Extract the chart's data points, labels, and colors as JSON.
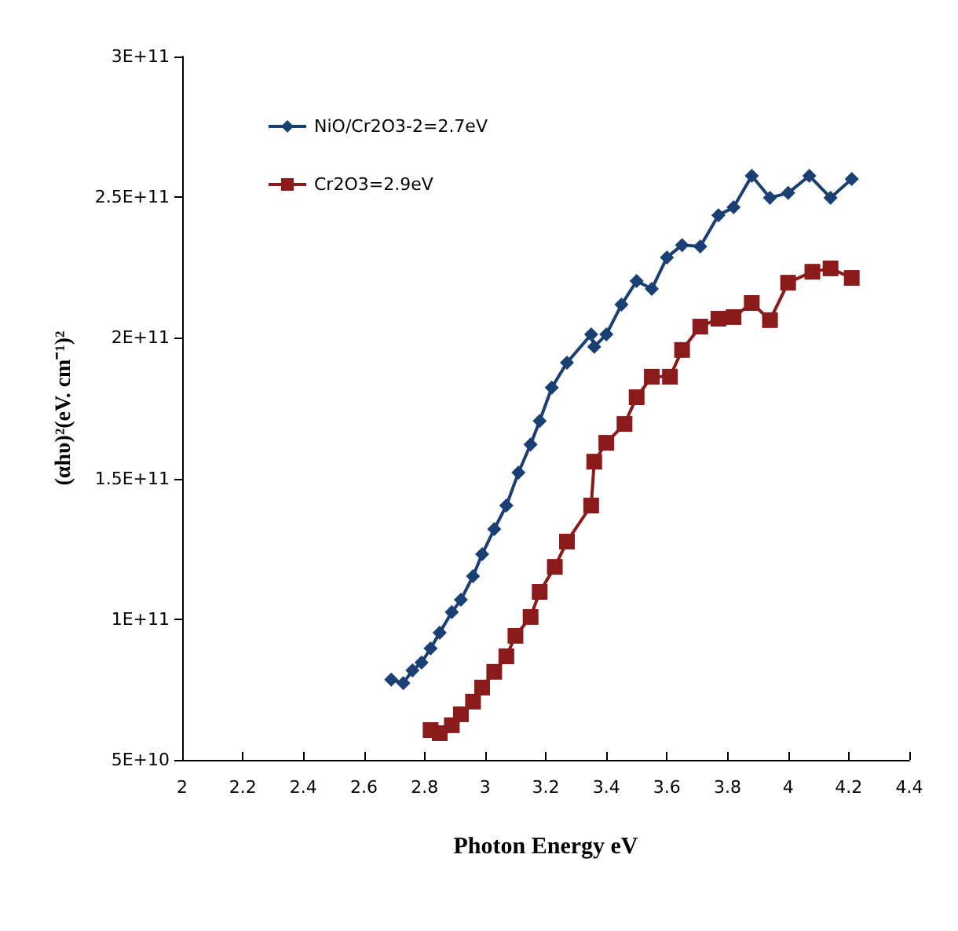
{
  "chart_data": {
    "type": "line",
    "xlabel": "Photon Energy eV",
    "ylabel": "(αhυ)²(eV. cm⁻¹)²",
    "xlim": [
      2,
      4.4
    ],
    "xticks": [
      2,
      2.2,
      2.4,
      2.6,
      2.8,
      3,
      3.2,
      3.4,
      3.6,
      3.8,
      4,
      4.2,
      4.4
    ],
    "ylim": [
      50000000000.0,
      300000000000.0
    ],
    "yticks": [
      {
        "value": 50000000000.0,
        "label": "5E+10"
      },
      {
        "value": 100000000000.0,
        "label": "1E+11"
      },
      {
        "value": 150000000000.0,
        "label": "1.5E+11"
      },
      {
        "value": 200000000000.0,
        "label": "2E+11"
      },
      {
        "value": 250000000000.0,
        "label": "2.5E+11"
      },
      {
        "value": 300000000000.0,
        "label": "3E+11"
      }
    ],
    "grid": false,
    "legend": "top left",
    "line_style": "solid",
    "series": [
      {
        "name": "NiO/Cr2O3-2=2.7eV",
        "color": "#1a3f72",
        "marker": "diamond",
        "x": [
          2.69,
          2.73,
          2.76,
          2.79,
          2.82,
          2.85,
          2.89,
          2.92,
          2.96,
          2.99,
          3.03,
          3.07,
          3.11,
          3.15,
          3.18,
          3.22,
          3.27,
          3.35,
          3.36,
          3.4,
          3.45,
          3.5,
          3.55,
          3.6,
          3.65,
          3.71,
          3.77,
          3.82,
          3.88,
          3.94,
          4.0,
          4.07,
          4.14,
          4.21
        ],
        "values": [
          78500000000.0,
          77300000000.0,
          81800000000.0,
          84600000000.0,
          89600000000.0,
          95200000000.0,
          102500000000.0,
          106900000000.0,
          115300000000.0,
          123100000000.0,
          132000000000.0,
          140400000000.0,
          152100000000.0,
          162100000000.0,
          170500000000.0,
          182300000000.0,
          191200000000.0,
          201200000000.0,
          196800000000.0,
          201200000000.0,
          211800000000.0,
          220200000000.0,
          217400000000.0,
          228600000000.0,
          233000000000.0,
          232500000000.0,
          243600000000.0,
          246400000000.0,
          257600000000.0,
          249800000000.0,
          251500000000.0,
          257600000000.0,
          249800000000.0,
          256500000000.0
        ]
      },
      {
        "name": "Cr2O3=2.9eV",
        "color": "#8b1a1a",
        "marker": "square",
        "x": [
          2.82,
          2.85,
          2.89,
          2.92,
          2.96,
          2.99,
          3.03,
          3.07,
          3.1,
          3.15,
          3.18,
          3.23,
          3.27,
          3.35,
          3.36,
          3.4,
          3.46,
          3.5,
          3.55,
          3.61,
          3.65,
          3.71,
          3.77,
          3.82,
          3.88,
          3.94,
          4.0,
          4.08,
          4.14,
          4.21
        ],
        "values": [
          60600000000.0,
          59500000000.0,
          62300000000.0,
          66200000000.0,
          70700000000.0,
          75700000000.0,
          81300000000.0,
          86800000000.0,
          94100000000.0,
          100800000000.0,
          109700000000.0,
          118600000000.0,
          127600000000.0,
          140400000000.0,
          156000000000.0,
          162700000000.0,
          169400000000.0,
          178900000000.0,
          186200000000.0,
          186200000000.0,
          195700000000.0,
          204000000000.0,
          206800000000.0,
          207400000000.0,
          212400000000.0,
          206300000000.0,
          219600000000.0,
          223500000000.0,
          224700000000.0,
          221300000000.0
        ]
      }
    ]
  }
}
